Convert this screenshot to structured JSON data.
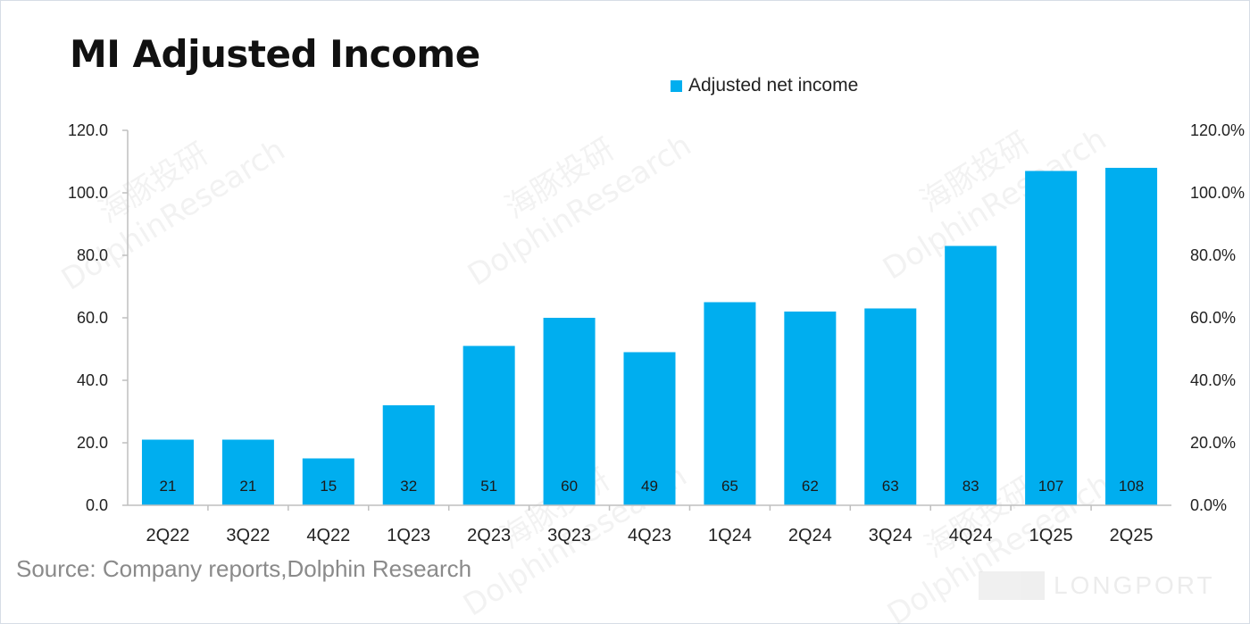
{
  "title": "MI Adjusted Income",
  "source": "Source: Company reports,Dolphin Research",
  "watermark": {
    "brand_cn": "海豚投研",
    "brand_en": "DolphinResearch",
    "logo_text": "LONGPORT"
  },
  "colors": {
    "bar": "#00aeef",
    "axis": "#bfbfbf"
  },
  "chart_data": {
    "type": "bar",
    "legend": [
      "Adjusted net income"
    ],
    "categories": [
      "2Q22",
      "3Q22",
      "4Q22",
      "1Q23",
      "2Q23",
      "3Q23",
      "4Q23",
      "1Q24",
      "2Q24",
      "3Q24",
      "4Q24",
      "1Q25",
      "2Q25"
    ],
    "series": [
      {
        "name": "Adjusted net income",
        "values": [
          21,
          21,
          15,
          32,
          51,
          60,
          49,
          65,
          62,
          63,
          83,
          107,
          108
        ]
      }
    ],
    "data_labels": [
      "21",
      "21",
      "15",
      "32",
      "51",
      "60",
      "49",
      "65",
      "62",
      "63",
      "83",
      "107",
      "108"
    ],
    "ylim": [
      0,
      120
    ],
    "y_ticks": [
      "0.0",
      "20.0",
      "40.0",
      "60.0",
      "80.0",
      "100.0",
      "120.0"
    ],
    "y2lim": [
      0,
      1.2
    ],
    "y2_ticks": [
      "0.0%",
      "20.0%",
      "40.0%",
      "60.0%",
      "80.0%",
      "100.0%",
      "120.0%"
    ],
    "legend_position": "top",
    "grid": false
  }
}
